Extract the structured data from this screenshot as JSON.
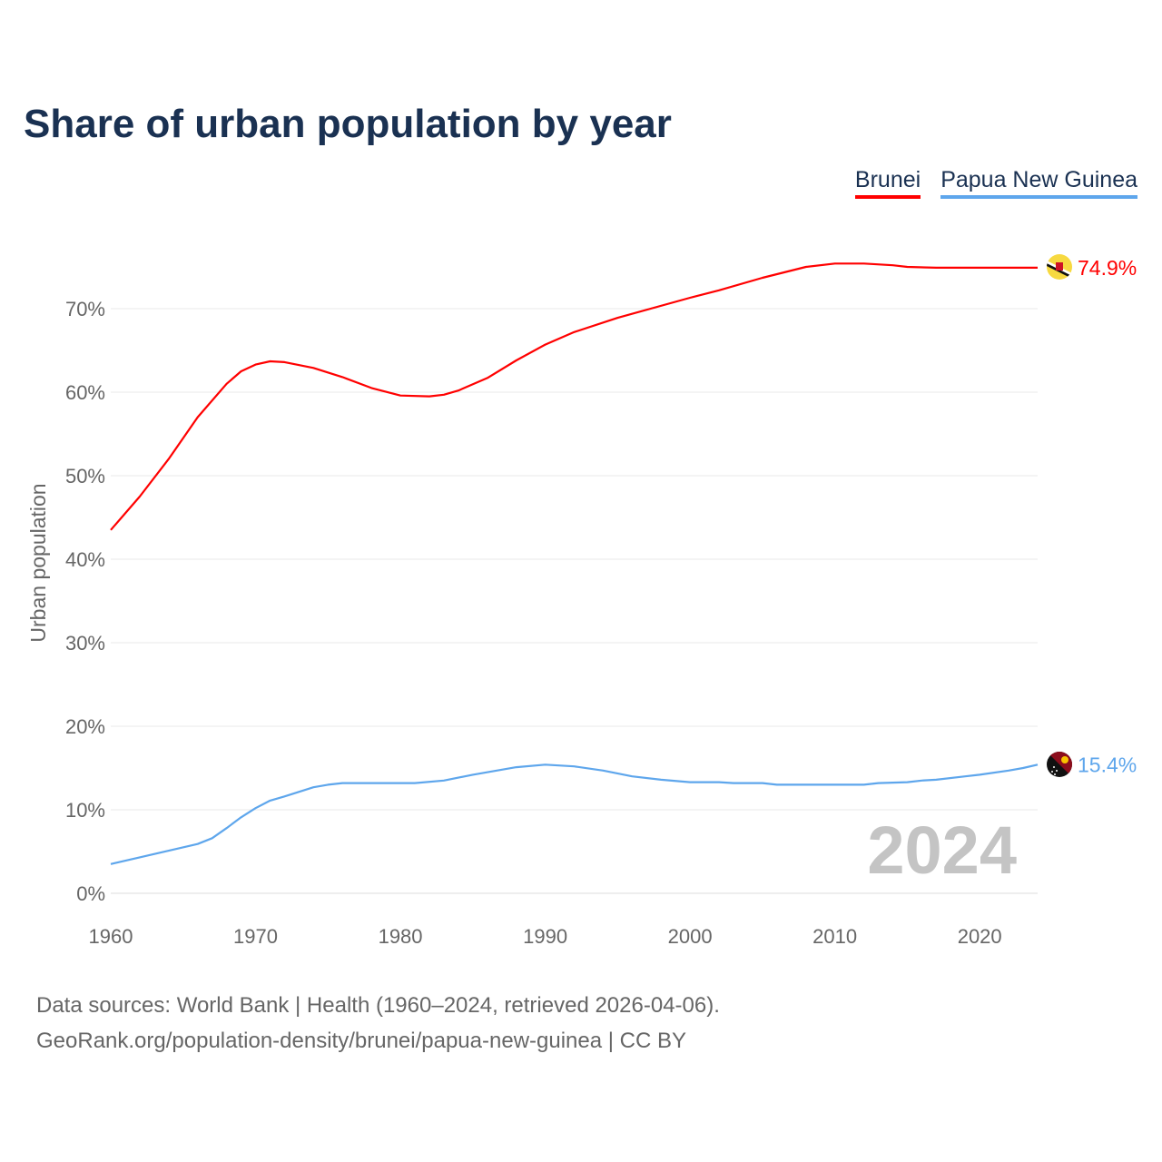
{
  "title": "Share of urban population by year",
  "legend": [
    {
      "label": "Brunei",
      "color": "#ff0000"
    },
    {
      "label": "Papua New Guinea",
      "color": "#5ea6ec"
    }
  ],
  "year_watermark": "2024",
  "footer": {
    "line1": "Data sources: World Bank | Health (1960–2024, retrieved 2026-04-06).",
    "line2": "GeoRank.org/population-density/brunei/papua-new-guinea | CC BY"
  },
  "chart_data": {
    "type": "line",
    "title": "Share of urban population by year",
    "xlabel": "",
    "ylabel": "Urban population",
    "xlim": [
      1960,
      2024
    ],
    "ylim": [
      0,
      80
    ],
    "x_ticks": [
      "1960",
      "1970",
      "1980",
      "1990",
      "2000",
      "2010",
      "2020"
    ],
    "y_ticks": [
      "0%",
      "10%",
      "20%",
      "30%",
      "40%",
      "50%",
      "60%",
      "70%"
    ],
    "grid": true,
    "series": [
      {
        "name": "Brunei",
        "color": "#ff0000",
        "end_label": "74.9%",
        "points": [
          [
            1960,
            43.5
          ],
          [
            1962,
            47.5
          ],
          [
            1964,
            52
          ],
          [
            1966,
            57
          ],
          [
            1968,
            61
          ],
          [
            1969,
            62.5
          ],
          [
            1970,
            63.3
          ],
          [
            1971,
            63.7
          ],
          [
            1972,
            63.6
          ],
          [
            1974,
            62.9
          ],
          [
            1976,
            61.8
          ],
          [
            1978,
            60.5
          ],
          [
            1980,
            59.6
          ],
          [
            1982,
            59.5
          ],
          [
            1983,
            59.7
          ],
          [
            1984,
            60.2
          ],
          [
            1986,
            61.7
          ],
          [
            1988,
            63.8
          ],
          [
            1990,
            65.7
          ],
          [
            1992,
            67.2
          ],
          [
            1995,
            68.9
          ],
          [
            2000,
            71.3
          ],
          [
            2002,
            72.2
          ],
          [
            2005,
            73.7
          ],
          [
            2008,
            75.0
          ],
          [
            2010,
            75.4
          ],
          [
            2012,
            75.4
          ],
          [
            2014,
            75.2
          ],
          [
            2015,
            75.0
          ],
          [
            2017,
            74.9
          ],
          [
            2020,
            74.9
          ],
          [
            2023,
            74.9
          ],
          [
            2024,
            74.9
          ]
        ]
      },
      {
        "name": "Papua New Guinea",
        "color": "#5ea6ec",
        "end_label": "15.4%",
        "points": [
          [
            1960,
            3.5
          ],
          [
            1962,
            4.3
          ],
          [
            1964,
            5.1
          ],
          [
            1966,
            5.9
          ],
          [
            1967,
            6.6
          ],
          [
            1968,
            7.8
          ],
          [
            1969,
            9.1
          ],
          [
            1970,
            10.2
          ],
          [
            1971,
            11.1
          ],
          [
            1972,
            11.6
          ],
          [
            1974,
            12.7
          ],
          [
            1975,
            13.0
          ],
          [
            1976,
            13.2
          ],
          [
            1981,
            13.2
          ],
          [
            1983,
            13.5
          ],
          [
            1985,
            14.2
          ],
          [
            1988,
            15.1
          ],
          [
            1990,
            15.4
          ],
          [
            1992,
            15.2
          ],
          [
            1994,
            14.7
          ],
          [
            1996,
            14.0
          ],
          [
            1998,
            13.6
          ],
          [
            2000,
            13.3
          ],
          [
            2002,
            13.3
          ],
          [
            2003,
            13.2
          ],
          [
            2005,
            13.2
          ],
          [
            2006,
            13.0
          ],
          [
            2012,
            13.0
          ],
          [
            2013,
            13.2
          ],
          [
            2015,
            13.3
          ],
          [
            2016,
            13.5
          ],
          [
            2017,
            13.6
          ],
          [
            2019,
            14.0
          ],
          [
            2020,
            14.2
          ],
          [
            2022,
            14.7
          ],
          [
            2023,
            15.0
          ],
          [
            2024,
            15.4
          ]
        ]
      }
    ]
  }
}
